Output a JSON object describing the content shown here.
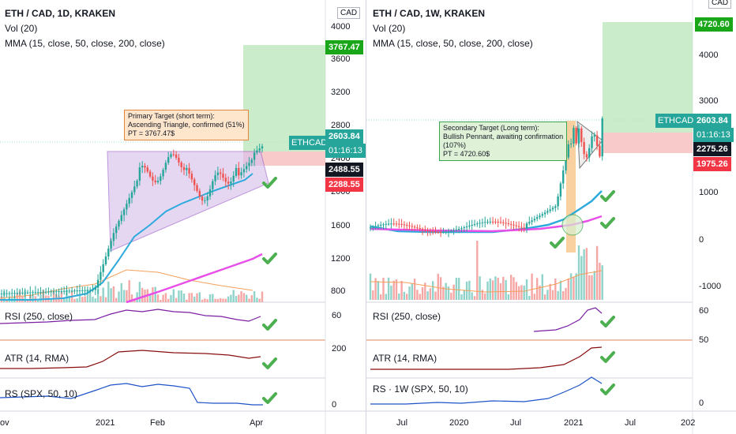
{
  "left": {
    "title": "ETH / CAD, 1D, KRAKEN",
    "vol": "Vol (20)",
    "mma": "MMA (15, close, 50, close, 200, close)",
    "currency": "CAD",
    "price_axis": [
      "4000",
      "3600",
      "3200",
      "2800",
      "2400",
      "2000",
      "1600",
      "1200",
      "800"
    ],
    "tags": {
      "target": "3767.47",
      "symbol": "ETHCAD",
      "price": "2603.84",
      "timer": "01:16:13",
      "level1": "2488.55",
      "level2": "2288.55"
    },
    "annotation": [
      "Primary Target (short term):",
      "Ascending Triangle, confirmed (51%)",
      "PT = 3767.47$"
    ],
    "rsi_label": "RSI (250, close)",
    "rsi_axis": "60",
    "atr_label": "ATR (14, RMA)",
    "atr_axis": "200",
    "rs_label": "RS (SPX, 50, 10)",
    "rs_axis": "0",
    "time_axis": [
      "ov",
      "2021",
      "Feb",
      "Apr"
    ]
  },
  "right": {
    "title": "ETH / CAD, 1W, KRAKEN",
    "vol": "Vol (20)",
    "mma": "MMA (15, close, 50, close, 200, close)",
    "currency": "CAD",
    "price_axis": [
      "4000",
      "3000",
      "1000",
      "0",
      "-1000"
    ],
    "tags": {
      "target": "4720.60",
      "symbol": "ETHCAD",
      "price": "2603.84",
      "timer": "01:16:13",
      "level1": "2275.26",
      "level2": "1975.26"
    },
    "annotation": [
      "Secondary Target (Long term):",
      "Bullish Pennant, awaiting confirmation",
      "(107%)",
      "PT = 4720.60$"
    ],
    "rsi_label": "RSI (250, close)",
    "rsi_axis": [
      "60",
      "50"
    ],
    "atr_label": "ATR (14, RMA)",
    "rs_label": "RS · 1W (SPX, 50, 10)",
    "rs_axis": "0",
    "time_axis": [
      "Jul",
      "2020",
      "Jul",
      "2021",
      "Jul",
      "202"
    ]
  },
  "colors": {
    "green_tag": "#089981",
    "red_tag": "#f23645",
    "dark_tag": "#131722",
    "target_tag": "#19a619",
    "teal": "#26a69a"
  }
}
